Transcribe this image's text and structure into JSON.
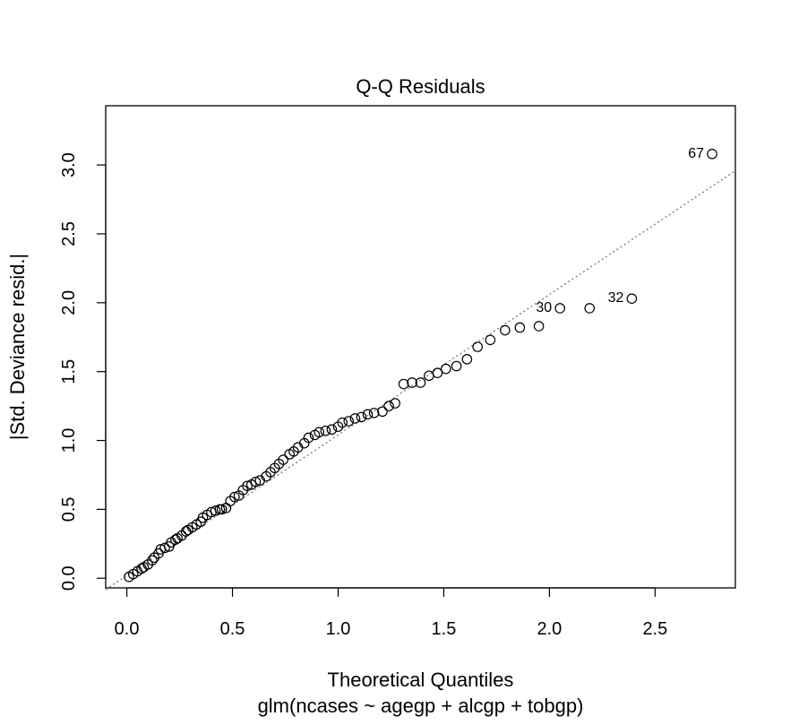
{
  "chart_data": {
    "type": "scatter",
    "title": "Q-Q Residuals",
    "xlabel": "Theoretical Quantiles",
    "subtitle": "glm(ncases ~ agegp + alcgp + tobgp)",
    "ylabel": "|Std. Deviance resid.|",
    "xlim": [
      -0.1,
      2.88
    ],
    "ylim": [
      -0.07,
      3.43
    ],
    "x_ticks": [
      0.0,
      0.5,
      1.0,
      1.5,
      2.0,
      2.5
    ],
    "x_tick_labels": [
      "0.0",
      "0.5",
      "1.0",
      "1.5",
      "2.0",
      "2.5"
    ],
    "y_ticks": [
      0.0,
      0.5,
      1.0,
      1.5,
      2.0,
      2.5,
      3.0
    ],
    "y_tick_labels": [
      "0.0",
      "0.5",
      "1.0",
      "1.5",
      "2.0",
      "2.5",
      "3.0"
    ],
    "grid": false,
    "reference_line": {
      "slope": 1.02,
      "intercept": 0.02,
      "style": "dotted",
      "color": "#777777"
    },
    "point_color": "#000000",
    "series": [
      {
        "x": [
          0.01,
          0.03,
          0.05,
          0.07,
          0.08,
          0.1,
          0.12,
          0.13,
          0.15,
          0.16,
          0.18,
          0.2,
          0.21,
          0.23,
          0.24,
          0.26,
          0.28,
          0.29,
          0.31,
          0.33,
          0.35,
          0.36,
          0.38,
          0.4,
          0.42,
          0.44,
          0.45,
          0.47,
          0.49,
          0.51,
          0.53,
          0.55,
          0.57,
          0.59,
          0.61,
          0.63,
          0.66,
          0.68,
          0.7,
          0.72,
          0.74,
          0.77,
          0.79,
          0.81,
          0.84,
          0.86,
          0.89,
          0.91,
          0.94,
          0.97,
          1.0,
          1.02,
          1.05,
          1.08,
          1.11,
          1.14,
          1.17,
          1.21,
          1.24,
          1.27,
          1.31,
          1.35,
          1.39,
          1.43,
          1.47,
          1.51,
          1.56,
          1.61,
          1.66,
          1.72,
          1.79,
          1.86,
          1.95,
          2.05,
          2.19,
          2.39,
          2.77
        ],
        "y": [
          0.01,
          0.03,
          0.05,
          0.07,
          0.08,
          0.1,
          0.13,
          0.15,
          0.18,
          0.21,
          0.22,
          0.23,
          0.26,
          0.28,
          0.29,
          0.31,
          0.34,
          0.35,
          0.37,
          0.39,
          0.41,
          0.44,
          0.46,
          0.48,
          0.49,
          0.5,
          0.5,
          0.51,
          0.56,
          0.59,
          0.6,
          0.64,
          0.67,
          0.68,
          0.7,
          0.71,
          0.74,
          0.77,
          0.8,
          0.83,
          0.86,
          0.9,
          0.92,
          0.95,
          0.98,
          1.02,
          1.04,
          1.06,
          1.07,
          1.08,
          1.1,
          1.13,
          1.14,
          1.16,
          1.17,
          1.19,
          1.2,
          1.21,
          1.25,
          1.27,
          1.41,
          1.42,
          1.42,
          1.47,
          1.49,
          1.52,
          1.54,
          1.59,
          1.68,
          1.73,
          1.8,
          1.82,
          1.83,
          1.96,
          1.96,
          2.03,
          3.08
        ]
      }
    ],
    "annotations": [
      {
        "text": "67",
        "x": 2.77,
        "y": 3.08
      },
      {
        "text": "30",
        "x": 2.05,
        "y": 1.96
      },
      {
        "text": "32",
        "x": 2.39,
        "y": 2.03
      }
    ]
  }
}
